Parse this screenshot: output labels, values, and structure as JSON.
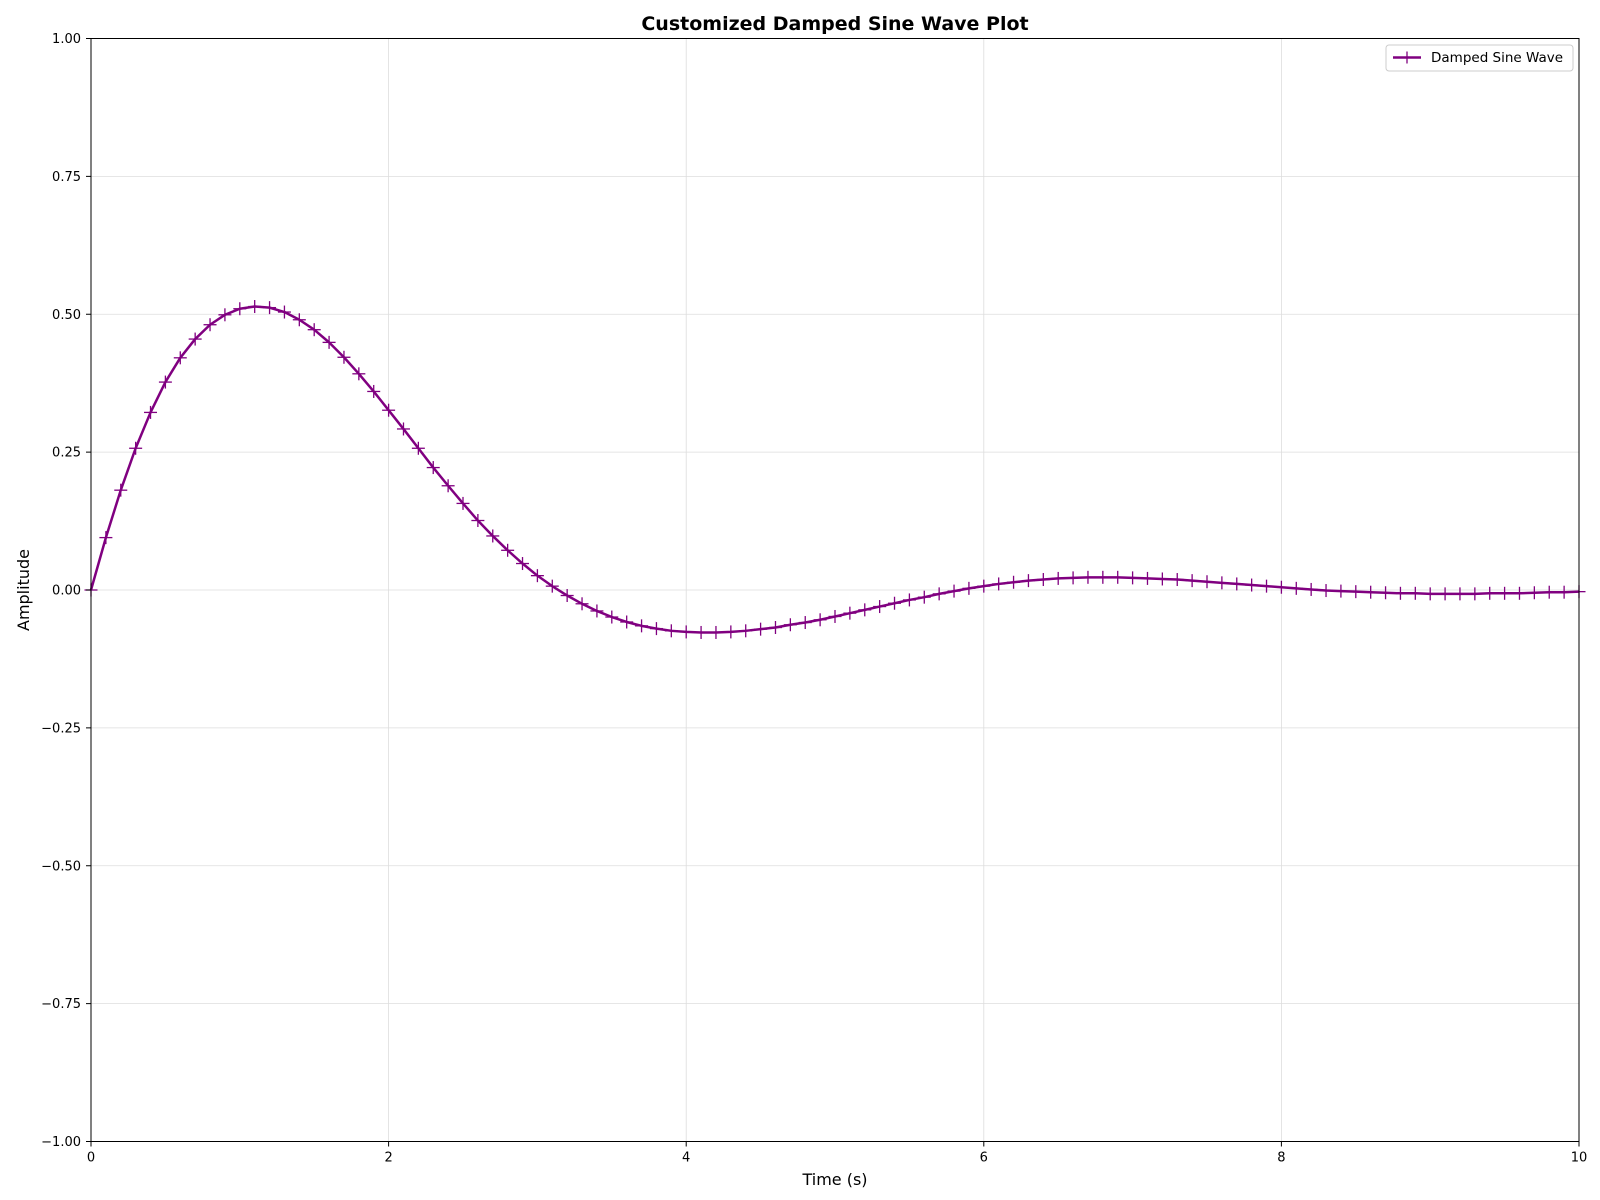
{
  "chart_data": {
    "type": "line",
    "title": "Customized Damped Sine Wave Plot",
    "xlabel": "Time (s)",
    "ylabel": "Amplitude",
    "xlim": [
      0,
      10
    ],
    "ylim": [
      -1.0,
      1.0
    ],
    "x_ticks": [
      "0",
      "2",
      "4",
      "6",
      "8",
      "10"
    ],
    "y_ticks": [
      "1.00",
      "0.75",
      "0.50",
      "0.25",
      "0.00",
      "−0.25",
      "−0.50",
      "−0.75",
      "−1.00"
    ],
    "grid": true,
    "legend_position": "top-right",
    "series": [
      {
        "name": "Damped Sine Wave",
        "color": "#800080",
        "line_style": "solid",
        "marker": "plus",
        "x": [
          0.0,
          0.1,
          0.2,
          0.3,
          0.4,
          0.5,
          0.6,
          0.7,
          0.8,
          0.9,
          1.0,
          1.1,
          1.2,
          1.3,
          1.4,
          1.5,
          1.6,
          1.7,
          1.8,
          1.9,
          2.0,
          2.1,
          2.2,
          2.3,
          2.4,
          2.5,
          2.6,
          2.7,
          2.8,
          2.9,
          3.0,
          3.1,
          3.2,
          3.3,
          3.4,
          3.5,
          3.6,
          3.7,
          3.8,
          3.9,
          4.0,
          4.1,
          4.2,
          4.3,
          4.4,
          4.5,
          4.6,
          4.7,
          4.8,
          4.9,
          5.0,
          5.1,
          5.2,
          5.3,
          5.4,
          5.5,
          5.6,
          5.7,
          5.8,
          5.9,
          6.0,
          6.1,
          6.2,
          6.3,
          6.4,
          6.5,
          6.6,
          6.7,
          6.8,
          6.9,
          7.0,
          7.1,
          7.2,
          7.3,
          7.4,
          7.5,
          7.6,
          7.7,
          7.8,
          7.9,
          8.0,
          8.1,
          8.2,
          8.3,
          8.4,
          8.5,
          8.6,
          8.7,
          8.8,
          8.9,
          9.0,
          9.1,
          9.2,
          9.3,
          9.4,
          9.5,
          9.6,
          9.7,
          9.8,
          9.9,
          10.0
        ],
        "y": [
          0.0,
          0.095,
          0.181,
          0.257,
          0.322,
          0.377,
          0.421,
          0.455,
          0.481,
          0.499,
          0.51,
          0.514,
          0.512,
          0.504,
          0.49,
          0.472,
          0.449,
          0.422,
          0.392,
          0.36,
          0.326,
          0.292,
          0.257,
          0.222,
          0.189,
          0.157,
          0.126,
          0.098,
          0.072,
          0.048,
          0.026,
          0.007,
          -0.01,
          -0.025,
          -0.038,
          -0.049,
          -0.058,
          -0.065,
          -0.07,
          -0.074,
          -0.076,
          -0.077,
          -0.077,
          -0.076,
          -0.074,
          -0.071,
          -0.068,
          -0.063,
          -0.059,
          -0.054,
          -0.048,
          -0.042,
          -0.036,
          -0.03,
          -0.024,
          -0.018,
          -0.013,
          -0.007,
          -0.002,
          0.003,
          0.007,
          0.011,
          0.014,
          0.017,
          0.019,
          0.021,
          0.022,
          0.023,
          0.023,
          0.023,
          0.022,
          0.021,
          0.02,
          0.019,
          0.017,
          0.015,
          0.013,
          0.011,
          0.009,
          0.007,
          0.005,
          0.003,
          0.001,
          -0.001,
          -0.002,
          -0.003,
          -0.004,
          -0.005,
          -0.006,
          -0.006,
          -0.007,
          -0.007,
          -0.007,
          -0.007,
          -0.006,
          -0.006,
          -0.006,
          -0.005,
          -0.004,
          -0.004,
          -0.003
        ]
      }
    ]
  }
}
